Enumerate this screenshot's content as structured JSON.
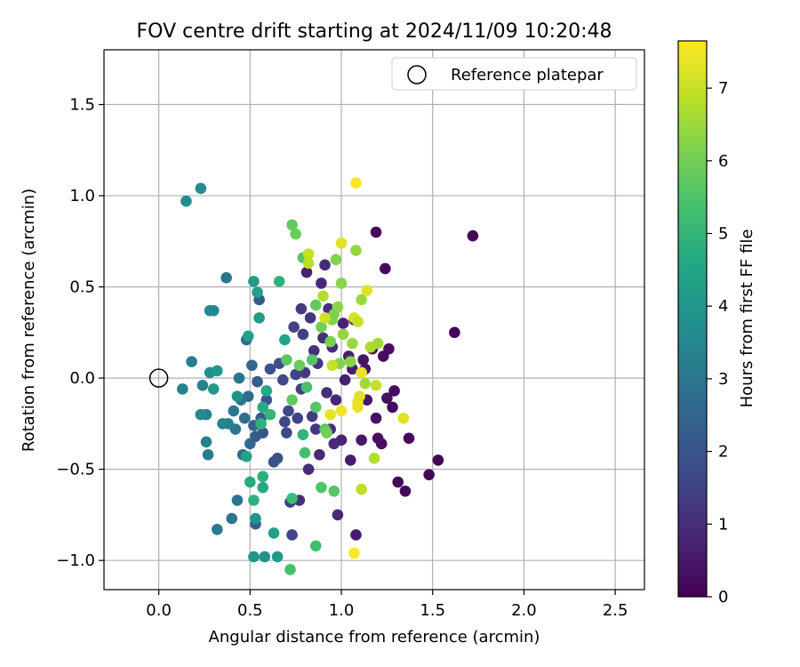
{
  "chart_data": {
    "type": "scatter",
    "title": "FOV centre drift starting at 2024/11/09 10:20:48",
    "xlabel": "Angular distance from reference (arcmin)",
    "ylabel": "Rotation from reference (arcmin)",
    "xlim": [
      -0.3,
      2.66
    ],
    "ylim": [
      -1.16,
      1.8
    ],
    "xticks": [
      0.0,
      0.5,
      1.0,
      1.5,
      2.0,
      2.5
    ],
    "xtick_labels": [
      "0.0",
      "0.5",
      "1.0",
      "1.5",
      "2.0",
      "2.5"
    ],
    "yticks": [
      -1.0,
      -0.5,
      0.0,
      0.5,
      1.0,
      1.5
    ],
    "ytick_labels": [
      "−1.0",
      "−0.5",
      "0.0",
      "0.5",
      "1.0",
      "1.5"
    ],
    "grid": true,
    "colormap": "viridis",
    "colorbar": {
      "label": "Hours from first FF file",
      "range": [
        0,
        7.65
      ],
      "ticks": [
        0,
        1,
        2,
        3,
        4,
        5,
        6,
        7
      ],
      "tick_labels": [
        "0",
        "1",
        "2",
        "3",
        "4",
        "5",
        "6",
        "7"
      ]
    },
    "legend": {
      "placement": "top-right",
      "entries": [
        {
          "label": "Reference platepar",
          "marker": "open-circle"
        }
      ]
    },
    "reference_point": {
      "x": 0.0,
      "y": 0.0
    },
    "points": [
      {
        "x": 1.72,
        "y": 0.78,
        "c": 0.05
      },
      {
        "x": 1.62,
        "y": 0.25,
        "c": 0.1
      },
      {
        "x": 1.19,
        "y": 0.8,
        "c": 0.1
      },
      {
        "x": 1.24,
        "y": 0.6,
        "c": 0.2
      },
      {
        "x": 1.53,
        "y": -0.45,
        "c": 0.1
      },
      {
        "x": 1.48,
        "y": -0.53,
        "c": 0.1
      },
      {
        "x": 1.37,
        "y": -0.33,
        "c": 0.15
      },
      {
        "x": 1.35,
        "y": -0.62,
        "c": 0.2
      },
      {
        "x": 1.31,
        "y": -0.57,
        "c": 0.15
      },
      {
        "x": 1.29,
        "y": -0.07,
        "c": 0.2
      },
      {
        "x": 1.28,
        "y": -0.16,
        "c": 0.2
      },
      {
        "x": 1.26,
        "y": 0.16,
        "c": 0.3
      },
      {
        "x": 1.25,
        "y": -0.11,
        "c": 0.3
      },
      {
        "x": 1.23,
        "y": 0.12,
        "c": 0.25
      },
      {
        "x": 1.22,
        "y": -0.36,
        "c": 0.3
      },
      {
        "x": 1.2,
        "y": -0.33,
        "c": 0.3
      },
      {
        "x": 1.19,
        "y": -0.22,
        "c": 0.35
      },
      {
        "x": 1.17,
        "y": 0.16,
        "c": 0.4
      },
      {
        "x": 1.13,
        "y": 0.05,
        "c": 0.4
      },
      {
        "x": 1.12,
        "y": 0.1,
        "c": 0.4
      },
      {
        "x": 1.14,
        "y": -0.12,
        "c": 0.45
      },
      {
        "x": 1.11,
        "y": -0.34,
        "c": 0.5
      },
      {
        "x": 1.08,
        "y": -0.86,
        "c": 0.6
      },
      {
        "x": 1.07,
        "y": 0.32,
        "c": 0.6
      },
      {
        "x": 1.06,
        "y": 0.05,
        "c": 0.6
      },
      {
        "x": 1.05,
        "y": -0.45,
        "c": 0.6
      },
      {
        "x": 1.04,
        "y": 0.12,
        "c": 0.7
      },
      {
        "x": 1.02,
        "y": -0.01,
        "c": 0.65
      },
      {
        "x": 1.01,
        "y": 0.3,
        "c": 0.7
      },
      {
        "x": 1.0,
        "y": -0.34,
        "c": 0.8
      },
      {
        "x": 0.98,
        "y": -0.75,
        "c": 0.9
      },
      {
        "x": 0.97,
        "y": -0.12,
        "c": 0.85
      },
      {
        "x": 0.96,
        "y": -0.36,
        "c": 0.9
      },
      {
        "x": 0.95,
        "y": 0.17,
        "c": 0.9
      },
      {
        "x": 0.94,
        "y": -0.28,
        "c": 1.0
      },
      {
        "x": 0.93,
        "y": 0.38,
        "c": 0.95
      },
      {
        "x": 0.92,
        "y": -0.08,
        "c": 1.0
      },
      {
        "x": 0.91,
        "y": 0.62,
        "c": 0.9
      },
      {
        "x": 0.9,
        "y": 0.22,
        "c": 1.05
      },
      {
        "x": 0.89,
        "y": 0.52,
        "c": 0.85
      },
      {
        "x": 0.88,
        "y": -0.42,
        "c": 0.9
      },
      {
        "x": 0.87,
        "y": 0.08,
        "c": 1.1
      },
      {
        "x": 0.86,
        "y": -0.28,
        "c": 1.2
      },
      {
        "x": 0.85,
        "y": 0.15,
        "c": 1.1
      },
      {
        "x": 0.84,
        "y": -0.21,
        "c": 1.3
      },
      {
        "x": 0.83,
        "y": 0.33,
        "c": 1.2
      },
      {
        "x": 0.82,
        "y": -0.5,
        "c": 0.9
      },
      {
        "x": 0.81,
        "y": 0.58,
        "c": 0.7
      },
      {
        "x": 0.8,
        "y": 0.03,
        "c": 1.3
      },
      {
        "x": 0.79,
        "y": 0.24,
        "c": 1.4
      },
      {
        "x": 0.78,
        "y": -0.06,
        "c": 1.4
      },
      {
        "x": 0.78,
        "y": 0.38,
        "c": 1.3
      },
      {
        "x": 0.77,
        "y": -0.67,
        "c": 1.1
      },
      {
        "x": 0.76,
        "y": -0.22,
        "c": 1.5
      },
      {
        "x": 0.75,
        "y": 0.02,
        "c": 1.5
      },
      {
        "x": 0.74,
        "y": 0.28,
        "c": 1.5
      },
      {
        "x": 0.73,
        "y": -0.86,
        "c": 1.5
      },
      {
        "x": 0.72,
        "y": -0.68,
        "c": 1.4
      },
      {
        "x": 0.71,
        "y": -0.18,
        "c": 1.6
      },
      {
        "x": 0.7,
        "y": -0.3,
        "c": 1.7
      },
      {
        "x": 0.69,
        "y": -0.24,
        "c": 1.7
      },
      {
        "x": 0.68,
        "y": -0.01,
        "c": 1.7
      },
      {
        "x": 0.66,
        "y": 0.08,
        "c": 1.8
      },
      {
        "x": 0.65,
        "y": -0.44,
        "c": 1.8
      },
      {
        "x": 0.63,
        "y": -0.46,
        "c": 1.9
      },
      {
        "x": 0.61,
        "y": 0.05,
        "c": 1.9
      },
      {
        "x": 0.59,
        "y": -0.12,
        "c": 2.0
      },
      {
        "x": 0.57,
        "y": -0.3,
        "c": 2.0
      },
      {
        "x": 0.56,
        "y": -0.22,
        "c": 2.1
      },
      {
        "x": 0.55,
        "y": 0.43,
        "c": 2.2
      },
      {
        "x": 0.54,
        "y": -0.02,
        "c": 2.2
      },
      {
        "x": 0.53,
        "y": -0.32,
        "c": 2.2
      },
      {
        "x": 0.53,
        "y": -0.8,
        "c": 2.3
      },
      {
        "x": 0.52,
        "y": -0.26,
        "c": 2.4
      },
      {
        "x": 0.51,
        "y": 0.07,
        "c": 2.5
      },
      {
        "x": 0.5,
        "y": -0.36,
        "c": 2.6
      },
      {
        "x": 0.49,
        "y": -0.1,
        "c": 2.6
      },
      {
        "x": 0.48,
        "y": 0.21,
        "c": 2.7
      },
      {
        "x": 0.47,
        "y": -0.22,
        "c": 2.8
      },
      {
        "x": 0.46,
        "y": -0.42,
        "c": 2.7
      },
      {
        "x": 0.45,
        "y": -0.12,
        "c": 2.9
      },
      {
        "x": 0.44,
        "y": 0.0,
        "c": 3.0
      },
      {
        "x": 0.43,
        "y": -0.67,
        "c": 2.9
      },
      {
        "x": 0.42,
        "y": -0.28,
        "c": 3.0
      },
      {
        "x": 0.41,
        "y": -0.18,
        "c": 3.1
      },
      {
        "x": 0.4,
        "y": -0.77,
        "c": 3.0
      },
      {
        "x": 0.38,
        "y": -0.25,
        "c": 3.2
      },
      {
        "x": 0.37,
        "y": 0.55,
        "c": 3.0
      },
      {
        "x": 0.35,
        "y": -0.25,
        "c": 3.4
      },
      {
        "x": 0.32,
        "y": -0.83,
        "c": 3.1
      },
      {
        "x": 0.3,
        "y": 0.37,
        "c": 3.5
      },
      {
        "x": 0.28,
        "y": 0.37,
        "c": 3.6
      },
      {
        "x": 0.27,
        "y": -0.42,
        "c": 3.2
      },
      {
        "x": 0.26,
        "y": -0.35,
        "c": 3.3
      },
      {
        "x": 0.26,
        "y": -0.2,
        "c": 3.4
      },
      {
        "x": 0.24,
        "y": -0.04,
        "c": 3.4
      },
      {
        "x": 0.23,
        "y": -0.2,
        "c": 3.6
      },
      {
        "x": 0.23,
        "y": 1.04,
        "c": 3.7
      },
      {
        "x": 0.18,
        "y": 0.09,
        "c": 3.2
      },
      {
        "x": 0.15,
        "y": 0.97,
        "c": 3.8
      },
      {
        "x": 0.13,
        "y": -0.06,
        "c": 3.3
      },
      {
        "x": 0.28,
        "y": 0.03,
        "c": 3.8
      },
      {
        "x": 0.32,
        "y": 0.04,
        "c": 4.0
      },
      {
        "x": 0.3,
        "y": -0.06,
        "c": 4.1
      },
      {
        "x": 0.43,
        "y": -0.1,
        "c": 3.9
      },
      {
        "x": 0.48,
        "y": -0.43,
        "c": 4.4
      },
      {
        "x": 0.49,
        "y": 0.23,
        "c": 4.3
      },
      {
        "x": 0.52,
        "y": 0.53,
        "c": 4.2
      },
      {
        "x": 0.54,
        "y": 0.47,
        "c": 4.3
      },
      {
        "x": 0.55,
        "y": 0.33,
        "c": 4.2
      },
      {
        "x": 0.53,
        "y": -0.77,
        "c": 4.0
      },
      {
        "x": 0.52,
        "y": -0.98,
        "c": 4.0
      },
      {
        "x": 0.58,
        "y": -0.98,
        "c": 3.9
      },
      {
        "x": 0.65,
        "y": -0.98,
        "c": 4.1
      },
      {
        "x": 0.63,
        "y": -0.85,
        "c": 4.3
      },
      {
        "x": 0.57,
        "y": -0.6,
        "c": 4.6
      },
      {
        "x": 0.57,
        "y": -0.54,
        "c": 4.8
      },
      {
        "x": 0.5,
        "y": -0.57,
        "c": 4.7
      },
      {
        "x": 0.52,
        "y": -0.67,
        "c": 4.9
      },
      {
        "x": 0.57,
        "y": -0.16,
        "c": 4.7
      },
      {
        "x": 0.59,
        "y": -0.07,
        "c": 4.6
      },
      {
        "x": 0.56,
        "y": -0.25,
        "c": 4.9
      },
      {
        "x": 0.61,
        "y": -0.2,
        "c": 5.0
      },
      {
        "x": 0.66,
        "y": 0.53,
        "c": 4.9
      },
      {
        "x": 0.69,
        "y": 0.21,
        "c": 4.5
      },
      {
        "x": 0.73,
        "y": -0.66,
        "c": 5.2
      },
      {
        "x": 0.72,
        "y": -1.05,
        "c": 5.4
      },
      {
        "x": 0.79,
        "y": -0.31,
        "c": 5.0
      },
      {
        "x": 0.8,
        "y": -0.41,
        "c": 5.3
      },
      {
        "x": 0.86,
        "y": -0.92,
        "c": 5.3
      },
      {
        "x": 0.89,
        "y": -0.6,
        "c": 5.5
      },
      {
        "x": 0.96,
        "y": -0.62,
        "c": 5.6
      },
      {
        "x": 0.81,
        "y": -0.05,
        "c": 5.4
      },
      {
        "x": 0.86,
        "y": -0.16,
        "c": 5.6
      },
      {
        "x": 0.79,
        "y": 0.66,
        "c": 5.6
      },
      {
        "x": 0.73,
        "y": 0.84,
        "c": 5.8
      },
      {
        "x": 0.75,
        "y": 0.79,
        "c": 5.9
      },
      {
        "x": 0.7,
        "y": 0.1,
        "c": 5.7
      },
      {
        "x": 0.73,
        "y": -0.12,
        "c": 5.8
      },
      {
        "x": 0.77,
        "y": 0.07,
        "c": 5.9
      },
      {
        "x": 0.84,
        "y": 0.1,
        "c": 5.6
      },
      {
        "x": 0.86,
        "y": 0.4,
        "c": 5.8
      },
      {
        "x": 0.89,
        "y": 0.28,
        "c": 6.0
      },
      {
        "x": 0.91,
        "y": -0.28,
        "c": 5.7
      },
      {
        "x": 0.92,
        "y": -0.3,
        "c": 6.0
      },
      {
        "x": 0.94,
        "y": 0.2,
        "c": 6.1
      },
      {
        "x": 0.95,
        "y": 0.32,
        "c": 6.2
      },
      {
        "x": 0.96,
        "y": 0.35,
        "c": 6.1
      },
      {
        "x": 0.97,
        "y": 0.65,
        "c": 6.2
      },
      {
        "x": 0.98,
        "y": 0.39,
        "c": 6.3
      },
      {
        "x": 0.99,
        "y": 0.08,
        "c": 6.2
      },
      {
        "x": 1.0,
        "y": 0.52,
        "c": 6.3
      },
      {
        "x": 1.01,
        "y": 0.24,
        "c": 6.4
      },
      {
        "x": 1.05,
        "y": 0.09,
        "c": 6.3
      },
      {
        "x": 1.06,
        "y": 0.19,
        "c": 6.5
      },
      {
        "x": 1.08,
        "y": 0.7,
        "c": 6.4
      },
      {
        "x": 1.11,
        "y": 0.43,
        "c": 6.5
      },
      {
        "x": 1.13,
        "y": -0.03,
        "c": 6.6
      },
      {
        "x": 1.16,
        "y": 0.17,
        "c": 6.7
      },
      {
        "x": 1.18,
        "y": -0.44,
        "c": 6.8
      },
      {
        "x": 1.2,
        "y": 0.19,
        "c": 6.6
      },
      {
        "x": 1.11,
        "y": -0.61,
        "c": 6.9
      },
      {
        "x": 0.82,
        "y": 0.63,
        "c": 6.9
      },
      {
        "x": 0.82,
        "y": 0.68,
        "c": 7.0
      },
      {
        "x": 0.9,
        "y": 0.45,
        "c": 6.8
      },
      {
        "x": 0.91,
        "y": 0.33,
        "c": 7.1
      },
      {
        "x": 0.95,
        "y": 0.07,
        "c": 7.0
      },
      {
        "x": 1.0,
        "y": 0.74,
        "c": 7.3
      },
      {
        "x": 1.07,
        "y": 0.33,
        "c": 7.2
      },
      {
        "x": 1.09,
        "y": 0.31,
        "c": 7.0
      },
      {
        "x": 1.14,
        "y": 0.48,
        "c": 7.3
      },
      {
        "x": 1.19,
        "y": -0.04,
        "c": 7.0
      },
      {
        "x": 1.09,
        "y": -0.13,
        "c": 7.4
      },
      {
        "x": 1.09,
        "y": -0.16,
        "c": 7.4
      },
      {
        "x": 1.1,
        "y": -0.1,
        "c": 7.3
      },
      {
        "x": 1.0,
        "y": -0.18,
        "c": 7.5
      },
      {
        "x": 0.94,
        "y": -0.2,
        "c": 7.4
      },
      {
        "x": 1.11,
        "y": 0.03,
        "c": 7.4
      },
      {
        "x": 1.34,
        "y": -0.22,
        "c": 7.3
      },
      {
        "x": 1.08,
        "y": 1.07,
        "c": 7.6
      },
      {
        "x": 1.07,
        "y": -0.96,
        "c": 7.6
      }
    ]
  }
}
